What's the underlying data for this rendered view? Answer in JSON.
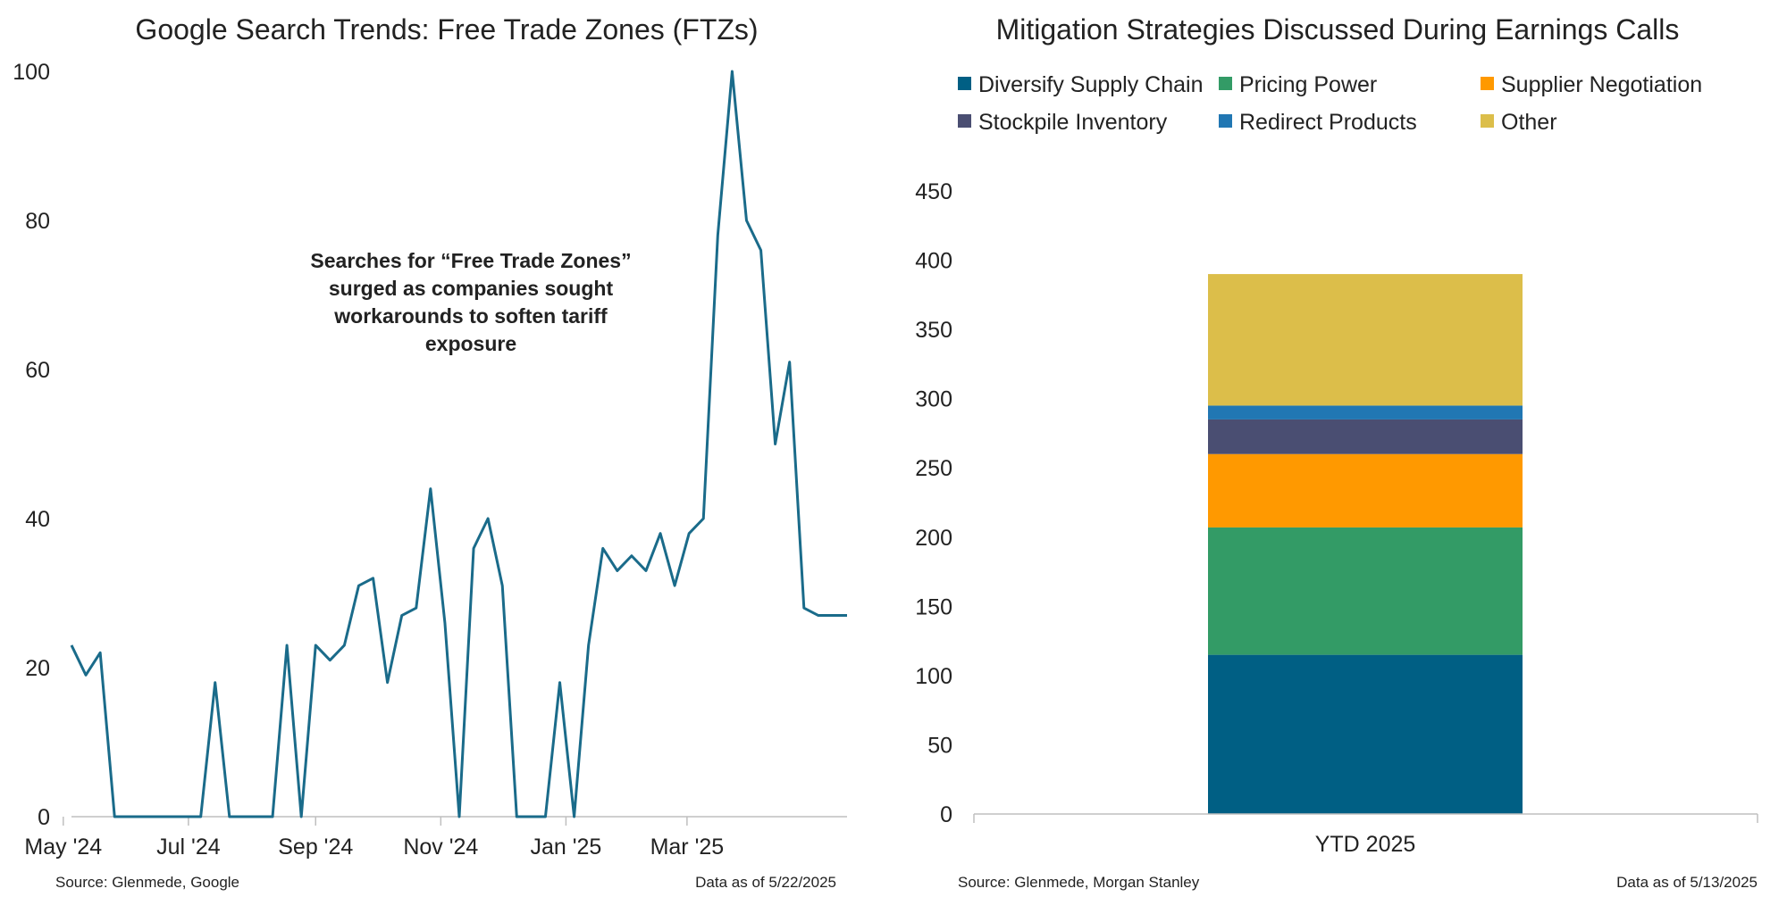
{
  "chart_data": [
    {
      "type": "line",
      "title": "Google Search Trends: Free Trade Zones (FTZs)",
      "xlabel": "",
      "ylabel": "",
      "ylim": [
        0,
        100
      ],
      "yticks": [
        0,
        20,
        40,
        60,
        80,
        100
      ],
      "xlim": [
        "2024-05-05",
        "2025-05-18"
      ],
      "xtick_labels": [
        "May '24",
        "Jul '24",
        "Sep '24",
        "Nov '24",
        "Jan '25",
        "Mar '25"
      ],
      "xtick_dates": [
        "2024-05-01",
        "2024-07-01",
        "2024-09-01",
        "2024-11-01",
        "2025-01-01",
        "2025-03-01"
      ],
      "grid": false,
      "color": "#1a6b8a",
      "series": [
        {
          "x": [
            "2024-05-05",
            "2024-05-12",
            "2024-05-19",
            "2024-05-26",
            "2024-06-02",
            "2024-06-09",
            "2024-06-16",
            "2024-06-23",
            "2024-06-30",
            "2024-07-07",
            "2024-07-14",
            "2024-07-21",
            "2024-07-28",
            "2024-08-04",
            "2024-08-11",
            "2024-08-18",
            "2024-08-25",
            "2024-09-01",
            "2024-09-08",
            "2024-09-15",
            "2024-09-22",
            "2024-09-29",
            "2024-10-06",
            "2024-10-13",
            "2024-10-20",
            "2024-10-27",
            "2024-11-03",
            "2024-11-10",
            "2024-11-17",
            "2024-11-24",
            "2024-12-01",
            "2024-12-08",
            "2024-12-15",
            "2024-12-22",
            "2024-12-29",
            "2025-01-05",
            "2025-01-12",
            "2025-01-19",
            "2025-01-26",
            "2025-02-02",
            "2025-02-09",
            "2025-02-16",
            "2025-02-23",
            "2025-03-02",
            "2025-03-09",
            "2025-03-16",
            "2025-03-23",
            "2025-03-30",
            "2025-04-06",
            "2025-04-13",
            "2025-04-20",
            "2025-04-27",
            "2025-05-04",
            "2025-05-11",
            "2025-05-18"
          ],
          "values": [
            23,
            19,
            22,
            0,
            0,
            0,
            0,
            0,
            0,
            0,
            18,
            0,
            0,
            0,
            0,
            23,
            0,
            23,
            21,
            23,
            31,
            32,
            18,
            27,
            28,
            44,
            26,
            0,
            36,
            40,
            31,
            0,
            0,
            0,
            18,
            0,
            23,
            36,
            33,
            35,
            33,
            38,
            31,
            38,
            40,
            78,
            100,
            80,
            76,
            50,
            61,
            28,
            27,
            27,
            27
          ]
        }
      ],
      "annotation": "Searches for “Free Trade Zones” surged as companies sought workarounds to soften tariff exposure",
      "source": "Source: Glenmede, Google",
      "data_as_of": "Data as of 5/22/2025"
    },
    {
      "type": "bar",
      "stacked": true,
      "title": "Mitigation Strategies Discussed During Earnings Calls",
      "xlabel": "",
      "ylabel": "",
      "categories": [
        "YTD 2025"
      ],
      "ylim": [
        0,
        450
      ],
      "yticks": [
        0,
        50,
        100,
        150,
        200,
        250,
        300,
        350,
        400,
        450
      ],
      "grid": false,
      "legend_position": "top",
      "series": [
        {
          "name": "Diversify Supply Chain",
          "values": [
            115
          ],
          "color": "#005f84"
        },
        {
          "name": "Pricing Power",
          "values": [
            92
          ],
          "color": "#339b66"
        },
        {
          "name": "Supplier Negotiation",
          "values": [
            53
          ],
          "color": "#ff9900"
        },
        {
          "name": "Stockpile Inventory",
          "values": [
            25
          ],
          "color": "#4a4e72"
        },
        {
          "name": "Redirect Products",
          "values": [
            10
          ],
          "color": "#2177b3"
        },
        {
          "name": "Other",
          "values": [
            95
          ],
          "color": "#dcbe4a"
        }
      ],
      "source": "Source: Glenmede, Morgan Stanley",
      "data_as_of": "Data as of 5/13/2025"
    }
  ]
}
